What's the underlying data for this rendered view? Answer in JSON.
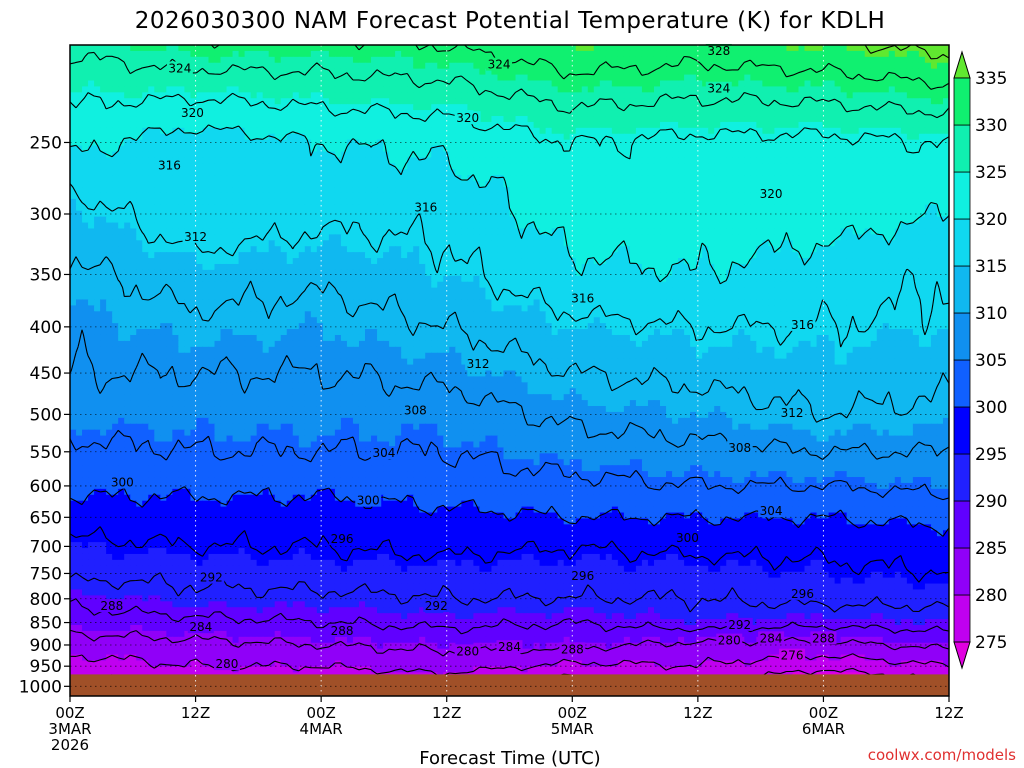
{
  "chart_data": {
    "type": "heatmap",
    "title": "2026030300 NAM Forecast Potential Temperature (K) for KDLH",
    "xlabel": "Forecast Time (UTC)",
    "ylabel": "",
    "credit": "coolwx.com/models",
    "x_ticks": [
      {
        "hours": 0,
        "line1": "00Z",
        "line2": "3MAR",
        "line3": "2026"
      },
      {
        "hours": 12,
        "line1": "12Z",
        "line2": "",
        "line3": ""
      },
      {
        "hours": 24,
        "line1": "00Z",
        "line2": "4MAR",
        "line3": ""
      },
      {
        "hours": 36,
        "line1": "12Z",
        "line2": "",
        "line3": ""
      },
      {
        "hours": 48,
        "line1": "00Z",
        "line2": "5MAR",
        "line3": ""
      },
      {
        "hours": 60,
        "line1": "12Z",
        "line2": "",
        "line3": ""
      },
      {
        "hours": 72,
        "line1": "00Z",
        "line2": "6MAR",
        "line3": ""
      },
      {
        "hours": 84,
        "line1": "12Z",
        "line2": "",
        "line3": ""
      }
    ],
    "xlim": [
      0,
      84
    ],
    "y_ticks": [
      250,
      300,
      350,
      400,
      450,
      500,
      550,
      600,
      650,
      700,
      750,
      800,
      850,
      900,
      950,
      1000
    ],
    "ylim": [
      195,
      1025
    ],
    "y_scale": "log-pressure (hPa)",
    "ground_level_hpa": 970,
    "colorbar": {
      "labels": [
        275,
        280,
        285,
        290,
        295,
        300,
        305,
        310,
        315,
        320,
        325,
        330,
        335
      ],
      "colors": [
        "#e000e0",
        "#c000f0",
        "#9000f8",
        "#6000ff",
        "#2020ff",
        "#0000ff",
        "#1060ff",
        "#1090f0",
        "#10b8f0",
        "#10d8f0",
        "#10f0e0",
        "#10f0b0",
        "#10f070",
        "#60e830"
      ]
    },
    "isotherm_interval": 4,
    "profile_hours": [
      0,
      12,
      24,
      36,
      48,
      60,
      72,
      84
    ],
    "profile_levels": [
      200,
      250,
      300,
      350,
      400,
      450,
      500,
      550,
      600,
      650,
      700,
      750,
      800,
      850,
      900,
      950,
      975
    ],
    "theta": [
      [
        328,
        330,
        330,
        331,
        334,
        333,
        334,
        336
      ],
      [
        321,
        318,
        320,
        321,
        324,
        323,
        323,
        324
      ],
      [
        314,
        319,
        317,
        317,
        322,
        322,
        322,
        320
      ],
      [
        311,
        314,
        313,
        315,
        319,
        320,
        318,
        316
      ],
      [
        309,
        311,
        310,
        312,
        315,
        316,
        316,
        315
      ],
      [
        308,
        308,
        308,
        309,
        312,
        313,
        314,
        313
      ],
      [
        306,
        306,
        306,
        306,
        309,
        310,
        312,
        311
      ],
      [
        303,
        304,
        304,
        304,
        306,
        307,
        308,
        308
      ],
      [
        301,
        301,
        301,
        302,
        303,
        304,
        304,
        305
      ],
      [
        298,
        298,
        298,
        299,
        300,
        300,
        300,
        301
      ],
      [
        295,
        296,
        296,
        297,
        296,
        297,
        297,
        298
      ],
      [
        293,
        293,
        294,
        294,
        294,
        294,
        295,
        296
      ],
      [
        289,
        291,
        291,
        292,
        292,
        292,
        293,
        293
      ],
      [
        286,
        287,
        288,
        289,
        288,
        290,
        289,
        290
      ],
      [
        282,
        283,
        284,
        285,
        285,
        283,
        283,
        285
      ],
      [
        278,
        280,
        280,
        282,
        279,
        280,
        277,
        280
      ],
      [
        276,
        278,
        278,
        279,
        276,
        278,
        274,
        277
      ]
    ],
    "contour_labels": [
      {
        "value": "324",
        "hours": 10.5,
        "hpa": 207
      },
      {
        "value": "324",
        "hours": 41,
        "hpa": 205
      },
      {
        "value": "328",
        "hours": 62,
        "hpa": 198
      },
      {
        "value": "324",
        "hours": 62,
        "hpa": 218
      },
      {
        "value": "320",
        "hours": 11.7,
        "hpa": 232
      },
      {
        "value": "320",
        "hours": 38,
        "hpa": 235
      },
      {
        "value": "320",
        "hours": 67,
        "hpa": 285
      },
      {
        "value": "316",
        "hours": 9.5,
        "hpa": 265
      },
      {
        "value": "316",
        "hours": 34,
        "hpa": 295
      },
      {
        "value": "316",
        "hours": 49,
        "hpa": 372
      },
      {
        "value": "316",
        "hours": 70,
        "hpa": 398
      },
      {
        "value": "312",
        "hours": 12,
        "hpa": 318
      },
      {
        "value": "312",
        "hours": 39,
        "hpa": 440
      },
      {
        "value": "312",
        "hours": 69,
        "hpa": 498
      },
      {
        "value": "308",
        "hours": 33,
        "hpa": 495
      },
      {
        "value": "308",
        "hours": 64,
        "hpa": 545
      },
      {
        "value": "304",
        "hours": 30,
        "hpa": 552
      },
      {
        "value": "304",
        "hours": 67,
        "hpa": 640
      },
      {
        "value": "300",
        "hours": 5,
        "hpa": 595
      },
      {
        "value": "300",
        "hours": 28.5,
        "hpa": 623
      },
      {
        "value": "300",
        "hours": 59,
        "hpa": 685
      },
      {
        "value": "296",
        "hours": 26,
        "hpa": 687
      },
      {
        "value": "296",
        "hours": 49,
        "hpa": 755
      },
      {
        "value": "296",
        "hours": 70,
        "hpa": 790
      },
      {
        "value": "292",
        "hours": 13.5,
        "hpa": 758
      },
      {
        "value": "292",
        "hours": 35,
        "hpa": 815
      },
      {
        "value": "292",
        "hours": 64,
        "hpa": 855
      },
      {
        "value": "288",
        "hours": 4,
        "hpa": 815
      },
      {
        "value": "288",
        "hours": 26,
        "hpa": 868
      },
      {
        "value": "288",
        "hours": 48,
        "hpa": 910
      },
      {
        "value": "288",
        "hours": 72,
        "hpa": 885
      },
      {
        "value": "284",
        "hours": 12.5,
        "hpa": 860
      },
      {
        "value": "284",
        "hours": 42,
        "hpa": 905
      },
      {
        "value": "284",
        "hours": 67,
        "hpa": 885
      },
      {
        "value": "280",
        "hours": 15,
        "hpa": 945
      },
      {
        "value": "280",
        "hours": 38,
        "hpa": 915
      },
      {
        "value": "280",
        "hours": 63,
        "hpa": 890
      },
      {
        "value": "276",
        "hours": 69,
        "hpa": 925
      }
    ]
  }
}
